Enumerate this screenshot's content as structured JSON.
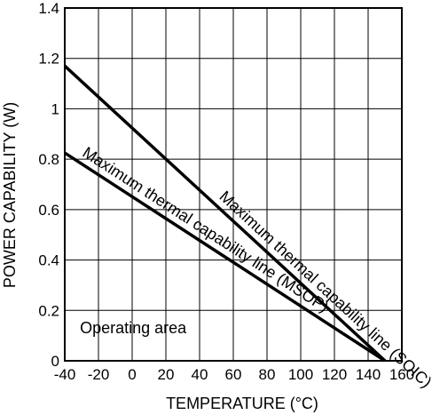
{
  "chart_data": {
    "type": "line",
    "xlabel": "TEMPERATURE (°C)",
    "ylabel": "POWER CAPABILITY (W)",
    "xlim": [
      -40,
      160
    ],
    "ylim": [
      0,
      1.4
    ],
    "x_ticks": [
      "-40",
      "-20",
      "0",
      "20",
      "40",
      "60",
      "80",
      "100",
      "120",
      "140",
      "160"
    ],
    "y_ticks": [
      "0",
      "0.2",
      "0.4",
      "0.6",
      "0.8",
      "1",
      "1.2",
      "1.4"
    ],
    "grid": true,
    "series": [
      {
        "name": "Maximum thermal capability line (SOIC)",
        "x": [
          -40,
          150
        ],
        "y": [
          1.17,
          0
        ]
      },
      {
        "name": "Maximum thermal capability line (MSOP)",
        "x": [
          -40,
          150
        ],
        "y": [
          0.825,
          0
        ]
      }
    ],
    "annotations": [
      {
        "text": "Operating area",
        "x": -31,
        "y": 0.13
      }
    ]
  }
}
